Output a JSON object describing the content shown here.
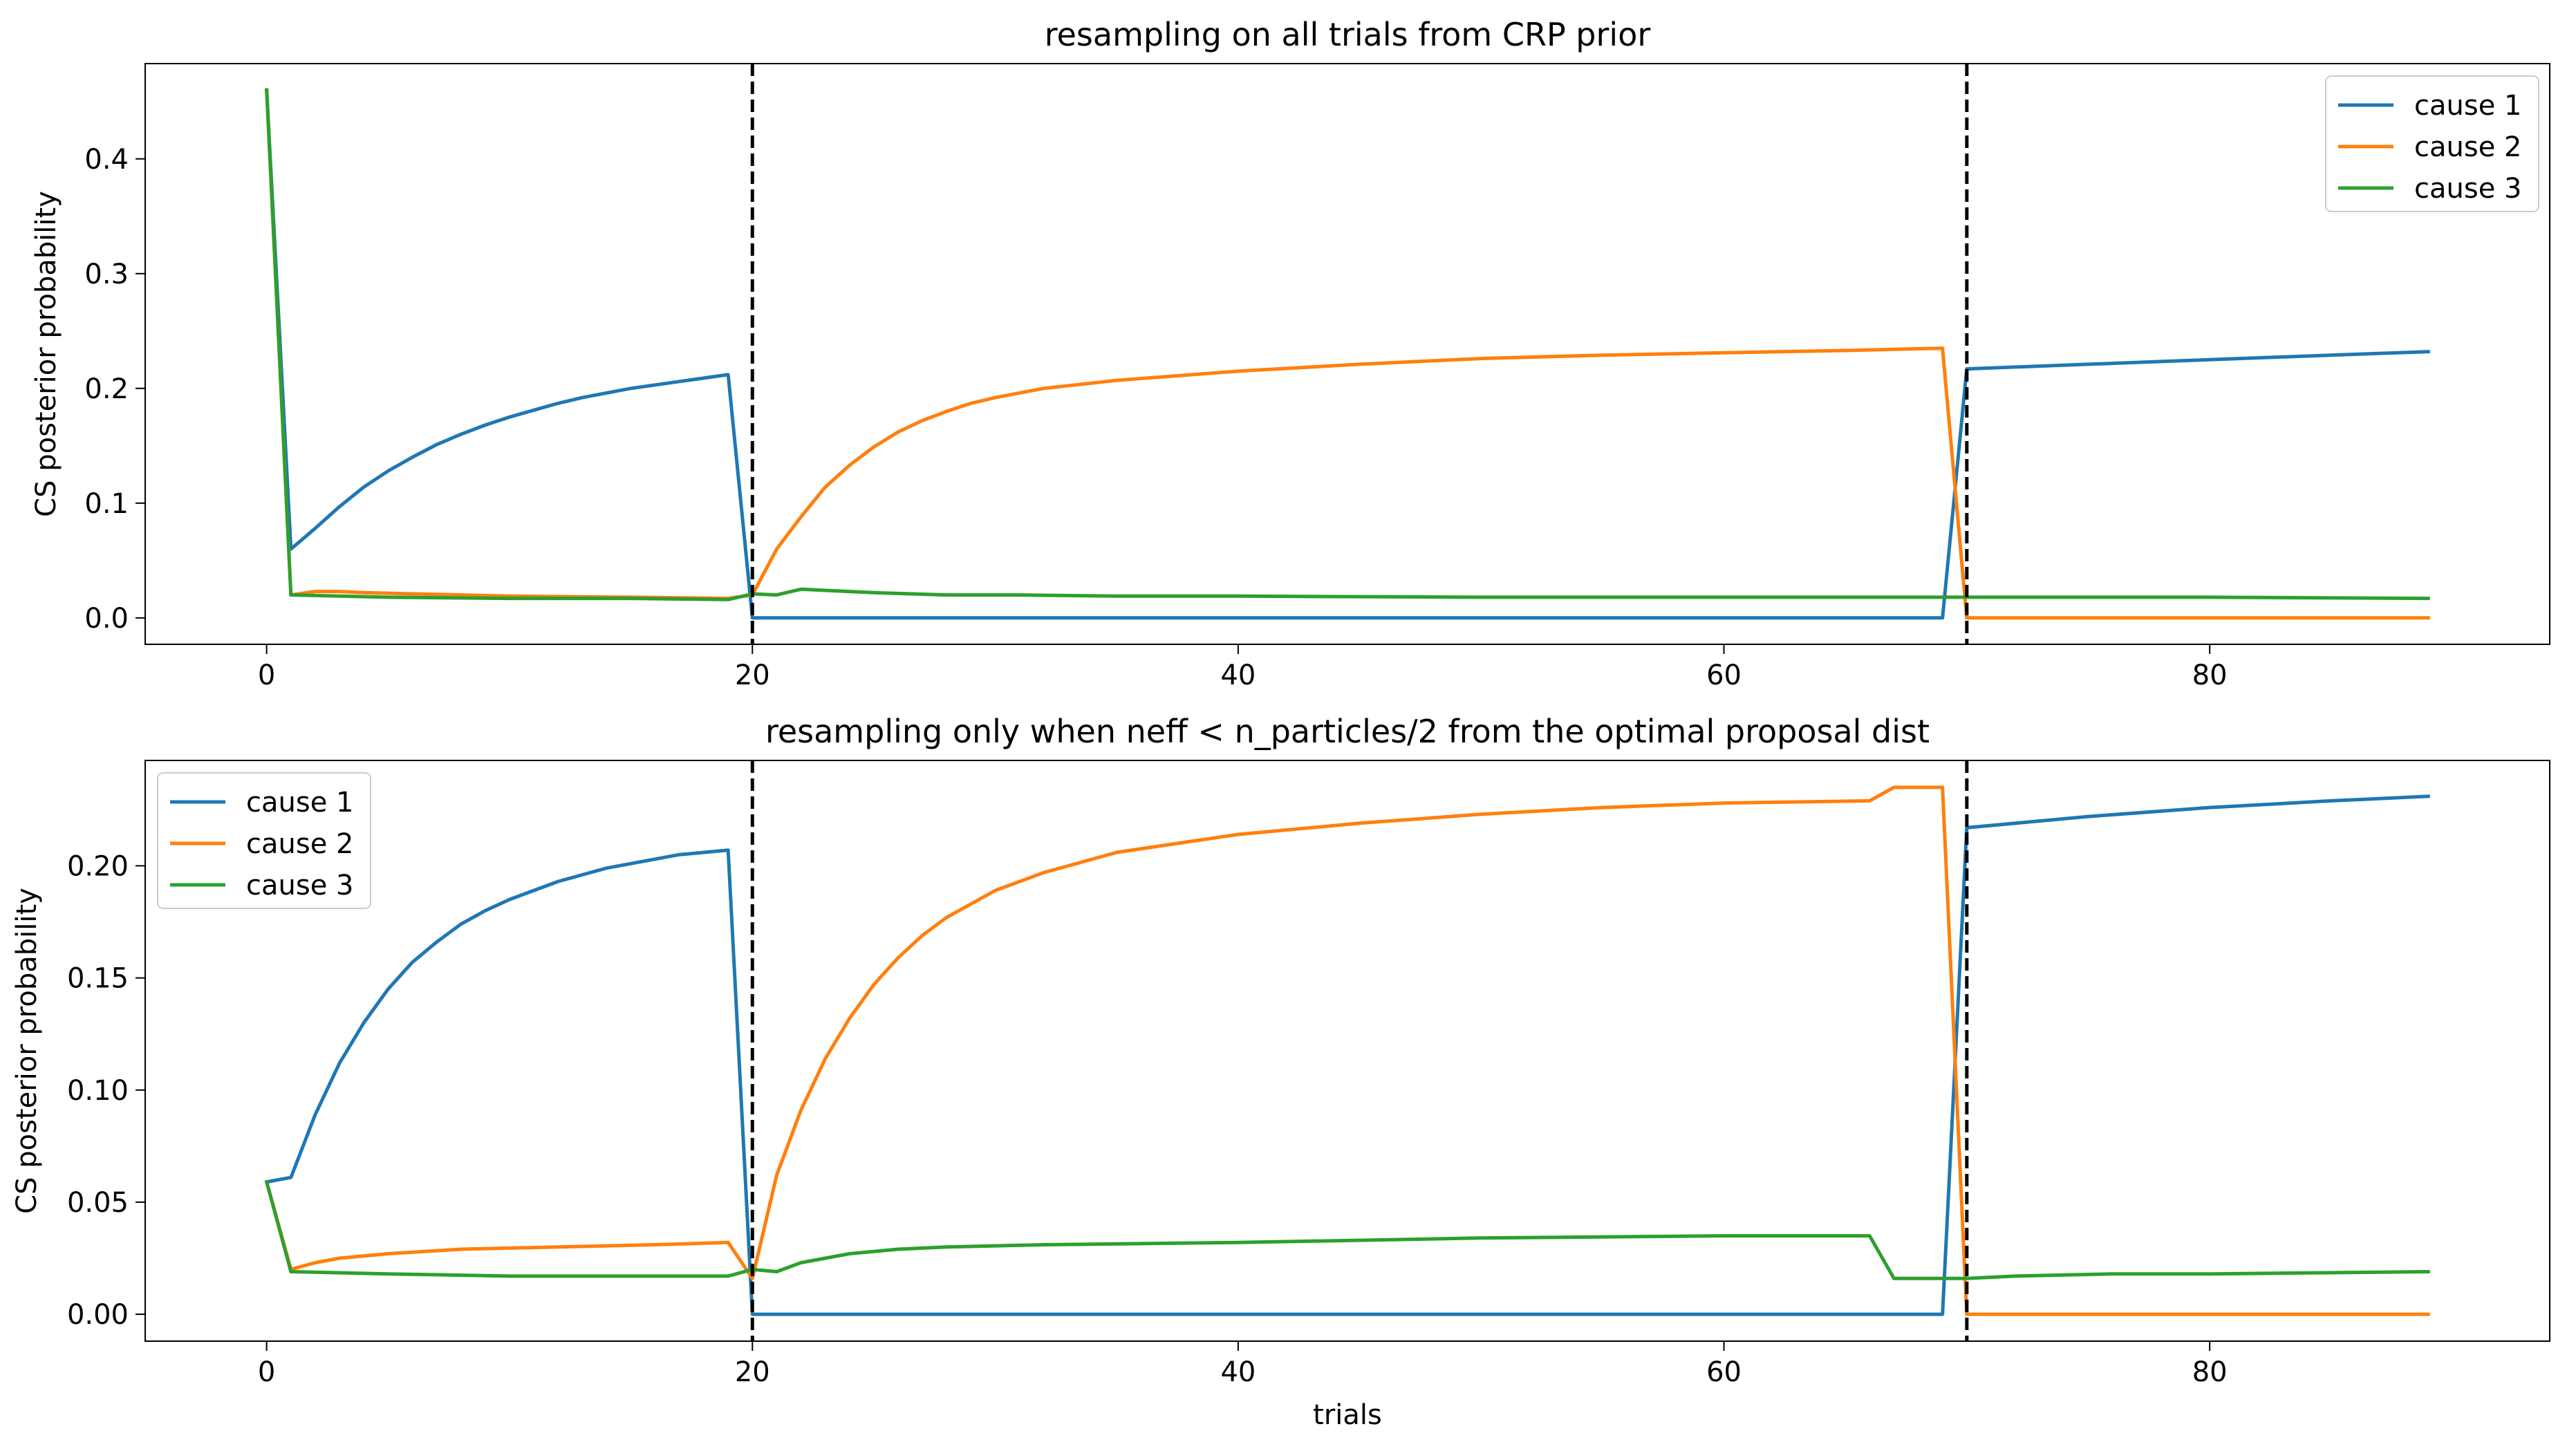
{
  "chart_data": [
    {
      "type": "line",
      "title": "resampling on all trials from CRP prior",
      "xlabel": "",
      "ylabel": "CS posterior probability",
      "xlim": [
        -5,
        94
      ],
      "ylim": [
        -0.023,
        0.483
      ],
      "xticks": [
        0,
        20,
        40,
        60,
        80
      ],
      "xtick_labels": [
        "0",
        "20",
        "40",
        "60",
        "80"
      ],
      "yticks": [
        0.0,
        0.1,
        0.2,
        0.3,
        0.4
      ],
      "ytick_labels": [
        "0.0",
        "0.1",
        "0.2",
        "0.3",
        "0.4"
      ],
      "vlines": [
        20,
        70
      ],
      "legend_loc": "upper right",
      "series": [
        {
          "name": "cause 1",
          "color": "#1f77b4",
          "points": [
            [
              0,
              0.46
            ],
            [
              1,
              0.06
            ],
            [
              2,
              0.078
            ],
            [
              3,
              0.097
            ],
            [
              4,
              0.114
            ],
            [
              5,
              0.128
            ],
            [
              6,
              0.14
            ],
            [
              7,
              0.151
            ],
            [
              8,
              0.16
            ],
            [
              9,
              0.168
            ],
            [
              10,
              0.175
            ],
            [
              11,
              0.181
            ],
            [
              12,
              0.187
            ],
            [
              13,
              0.192
            ],
            [
              14,
              0.196
            ],
            [
              15,
              0.2
            ],
            [
              16,
              0.203
            ],
            [
              17,
              0.206
            ],
            [
              18,
              0.209
            ],
            [
              19,
              0.212
            ],
            [
              20,
              0.0
            ],
            [
              69,
              0.0
            ],
            [
              70,
              0.217
            ],
            [
              75,
              0.221
            ],
            [
              80,
              0.225
            ],
            [
              85,
              0.229
            ],
            [
              89,
              0.232
            ]
          ]
        },
        {
          "name": "cause 2",
          "color": "#ff7f0e",
          "points": [
            [
              0,
              0.46
            ],
            [
              1,
              0.02
            ],
            [
              2,
              0.023
            ],
            [
              3,
              0.023
            ],
            [
              4,
              0.022
            ],
            [
              6,
              0.021
            ],
            [
              10,
              0.019
            ],
            [
              15,
              0.018
            ],
            [
              19,
              0.017
            ],
            [
              20,
              0.02
            ],
            [
              21,
              0.06
            ],
            [
              22,
              0.088
            ],
            [
              23,
              0.114
            ],
            [
              24,
              0.133
            ],
            [
              25,
              0.149
            ],
            [
              26,
              0.162
            ],
            [
              27,
              0.172
            ],
            [
              28,
              0.18
            ],
            [
              29,
              0.187
            ],
            [
              30,
              0.192
            ],
            [
              32,
              0.2
            ],
            [
              35,
              0.207
            ],
            [
              40,
              0.215
            ],
            [
              45,
              0.221
            ],
            [
              50,
              0.226
            ],
            [
              55,
              0.229
            ],
            [
              60,
              0.231
            ],
            [
              65,
              0.233
            ],
            [
              69,
              0.235
            ],
            [
              70,
              0.0
            ],
            [
              89,
              0.0
            ]
          ]
        },
        {
          "name": "cause 3",
          "color": "#2ca02c",
          "points": [
            [
              0,
              0.46
            ],
            [
              1,
              0.02
            ],
            [
              5,
              0.018
            ],
            [
              10,
              0.017
            ],
            [
              15,
              0.017
            ],
            [
              19,
              0.016
            ],
            [
              20,
              0.021
            ],
            [
              21,
              0.02
            ],
            [
              22,
              0.025
            ],
            [
              23,
              0.024
            ],
            [
              25,
              0.022
            ],
            [
              28,
              0.02
            ],
            [
              31,
              0.02
            ],
            [
              35,
              0.019
            ],
            [
              40,
              0.019
            ],
            [
              50,
              0.018
            ],
            [
              60,
              0.018
            ],
            [
              70,
              0.018
            ],
            [
              80,
              0.018
            ],
            [
              89,
              0.017
            ]
          ]
        }
      ]
    },
    {
      "type": "line",
      "title": "resampling only when neff < n_particles/2 from the optimal proposal dist",
      "xlabel": "trials",
      "ylabel": "CS posterior probability",
      "xlim": [
        -5,
        94
      ],
      "ylim": [
        -0.012,
        0.247
      ],
      "xticks": [
        0,
        20,
        40,
        60,
        80
      ],
      "xtick_labels": [
        "0",
        "20",
        "40",
        "60",
        "80"
      ],
      "yticks": [
        0.0,
        0.05,
        0.1,
        0.15,
        0.2
      ],
      "ytick_labels": [
        "0.00",
        "0.05",
        "0.10",
        "0.15",
        "0.20"
      ],
      "vlines": [
        20,
        70
      ],
      "legend_loc": "upper left",
      "series": [
        {
          "name": "cause 1",
          "color": "#1f77b4",
          "points": [
            [
              0,
              0.059
            ],
            [
              1,
              0.061
            ],
            [
              2,
              0.089
            ],
            [
              3,
              0.112
            ],
            [
              4,
              0.13
            ],
            [
              5,
              0.145
            ],
            [
              6,
              0.157
            ],
            [
              7,
              0.166
            ],
            [
              8,
              0.174
            ],
            [
              9,
              0.18
            ],
            [
              10,
              0.185
            ],
            [
              11,
              0.189
            ],
            [
              12,
              0.193
            ],
            [
              13,
              0.196
            ],
            [
              14,
              0.199
            ],
            [
              15,
              0.201
            ],
            [
              16,
              0.203
            ],
            [
              17,
              0.205
            ],
            [
              18,
              0.206
            ],
            [
              19,
              0.207
            ],
            [
              20,
              0.0
            ],
            [
              69,
              0.0
            ],
            [
              70,
              0.217
            ],
            [
              75,
              0.222
            ],
            [
              80,
              0.226
            ],
            [
              85,
              0.229
            ],
            [
              89,
              0.231
            ]
          ]
        },
        {
          "name": "cause 2",
          "color": "#ff7f0e",
          "points": [
            [
              0,
              0.059
            ],
            [
              1,
              0.02
            ],
            [
              2,
              0.023
            ],
            [
              3,
              0.025
            ],
            [
              5,
              0.027
            ],
            [
              8,
              0.029
            ],
            [
              12,
              0.03
            ],
            [
              16,
              0.031
            ],
            [
              19,
              0.032
            ],
            [
              20,
              0.016
            ],
            [
              21,
              0.062
            ],
            [
              22,
              0.091
            ],
            [
              23,
              0.114
            ],
            [
              24,
              0.132
            ],
            [
              25,
              0.147
            ],
            [
              26,
              0.159
            ],
            [
              27,
              0.169
            ],
            [
              28,
              0.177
            ],
            [
              29,
              0.183
            ],
            [
              30,
              0.189
            ],
            [
              32,
              0.197
            ],
            [
              35,
              0.206
            ],
            [
              40,
              0.214
            ],
            [
              45,
              0.219
            ],
            [
              50,
              0.223
            ],
            [
              55,
              0.226
            ],
            [
              60,
              0.228
            ],
            [
              66,
              0.229
            ],
            [
              67,
              0.235
            ],
            [
              69,
              0.235
            ],
            [
              70,
              0.0
            ],
            [
              89,
              0.0
            ]
          ]
        },
        {
          "name": "cause 3",
          "color": "#2ca02c",
          "points": [
            [
              0,
              0.059
            ],
            [
              1,
              0.019
            ],
            [
              5,
              0.018
            ],
            [
              10,
              0.017
            ],
            [
              15,
              0.017
            ],
            [
              19,
              0.017
            ],
            [
              20,
              0.02
            ],
            [
              21,
              0.019
            ],
            [
              22,
              0.023
            ],
            [
              23,
              0.025
            ],
            [
              24,
              0.027
            ],
            [
              26,
              0.029
            ],
            [
              28,
              0.03
            ],
            [
              32,
              0.031
            ],
            [
              40,
              0.032
            ],
            [
              50,
              0.034
            ],
            [
              60,
              0.035
            ],
            [
              66,
              0.035
            ],
            [
              67,
              0.016
            ],
            [
              70,
              0.016
            ],
            [
              72,
              0.017
            ],
            [
              76,
              0.018
            ],
            [
              80,
              0.018
            ],
            [
              89,
              0.019
            ]
          ]
        }
      ]
    }
  ]
}
